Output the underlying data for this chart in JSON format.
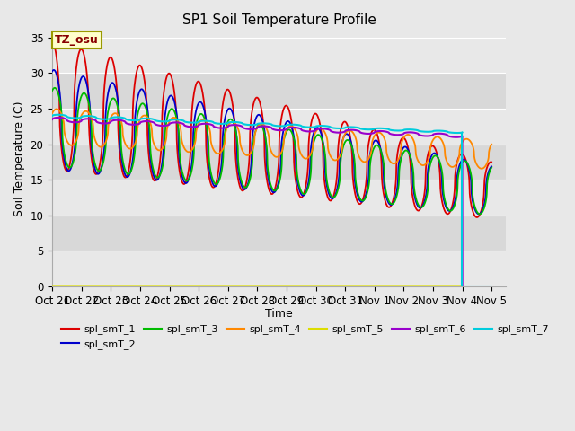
{
  "title": "SP1 Soil Temperature Profile",
  "xlabel": "Time",
  "ylabel": "Soil Temperature (C)",
  "ylim": [
    0,
    36
  ],
  "yticks": [
    0,
    5,
    10,
    15,
    20,
    25,
    30,
    35
  ],
  "annotation_text": "TZ_osu",
  "annotation_color": "#880000",
  "annotation_bg": "#ffffcc",
  "annotation_border": "#999900",
  "series_colors": {
    "spl_smT_1": "#dd0000",
    "spl_smT_2": "#0000cc",
    "spl_smT_3": "#00bb00",
    "spl_smT_4": "#ff8800",
    "spl_smT_5": "#dddd00",
    "spl_smT_6": "#9900cc",
    "spl_smT_7": "#00ccdd"
  },
  "legend_labels": [
    "spl_smT_1",
    "spl_smT_2",
    "spl_smT_3",
    "spl_smT_4",
    "spl_smT_5",
    "spl_smT_6",
    "spl_smT_7"
  ],
  "xtick_labels": [
    "Oct 21",
    "Oct 22",
    "Oct 23",
    "Oct 24",
    "Oct 25",
    "Oct 26",
    "Oct 27",
    "Oct 28",
    "Oct 29",
    "Oct 30",
    "Oct 31",
    "Nov 1",
    "Nov 2",
    "Nov 3",
    "Nov 4",
    "Nov 5"
  ],
  "n_days": 15,
  "background_light": "#e8e8e8",
  "background_dark": "#d8d8d8",
  "grid_color": "#ffffff"
}
